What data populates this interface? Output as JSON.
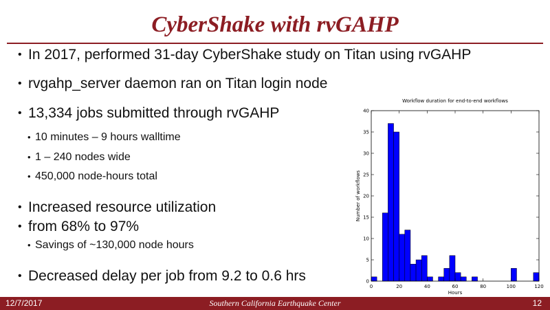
{
  "slide": {
    "title": "CyberShake with rvGAHP",
    "bullet_glyph": "•",
    "bullets": [
      {
        "level": 1,
        "text": "In 2017, performed 31-day CyberShake study on Titan using rvGAHP"
      },
      {
        "level": 1,
        "text": "rvgahp_server daemon ran on Titan login node"
      },
      {
        "level": 1,
        "text": "13,334 jobs submitted through rvGAHP"
      },
      {
        "level": 2,
        "text": "10 minutes – 9 hours walltime"
      },
      {
        "level": 2,
        "text": "1 – 240 nodes wide"
      },
      {
        "level": 2,
        "text": "450,000 node-hours total"
      },
      {
        "level": 1,
        "text": "Increased resource utilization"
      },
      {
        "level": 1,
        "text": "from 68% to 97%"
      },
      {
        "level": 2,
        "text": "Savings of ~130,000 node hours"
      },
      {
        "level": 1,
        "text": "Decreased delay per job from 9.2 to 0.6 hrs"
      }
    ]
  },
  "footer": {
    "date": "12/7/2017",
    "organization": "Southern California Earthquake Center",
    "page_number": "12"
  },
  "colors": {
    "accent": "#8c1d23",
    "bar_fill": "#0000ff",
    "bar_stroke": "#000000"
  },
  "chart_data": {
    "type": "bar",
    "title": "Workflow duration for end-to-end workflows",
    "xlabel": "Hours",
    "ylabel": "Number of workflows",
    "xlim": [
      0,
      120
    ],
    "ylim": [
      0,
      40
    ],
    "xticks": [
      0,
      20,
      40,
      60,
      80,
      100,
      120
    ],
    "yticks": [
      0,
      5,
      10,
      15,
      20,
      25,
      30,
      35,
      40
    ],
    "bin_width": 4,
    "bins": [
      {
        "x": 0,
        "count": 1
      },
      {
        "x": 8,
        "count": 16
      },
      {
        "x": 12,
        "count": 37
      },
      {
        "x": 16,
        "count": 35
      },
      {
        "x": 20,
        "count": 11
      },
      {
        "x": 24,
        "count": 12
      },
      {
        "x": 28,
        "count": 4
      },
      {
        "x": 32,
        "count": 5
      },
      {
        "x": 36,
        "count": 6
      },
      {
        "x": 40,
        "count": 1
      },
      {
        "x": 48,
        "count": 1
      },
      {
        "x": 52,
        "count": 3
      },
      {
        "x": 56,
        "count": 6
      },
      {
        "x": 60,
        "count": 2
      },
      {
        "x": 64,
        "count": 1
      },
      {
        "x": 72,
        "count": 1
      },
      {
        "x": 100,
        "count": 3
      },
      {
        "x": 116,
        "count": 2
      }
    ],
    "grid": false,
    "legend": "none"
  }
}
